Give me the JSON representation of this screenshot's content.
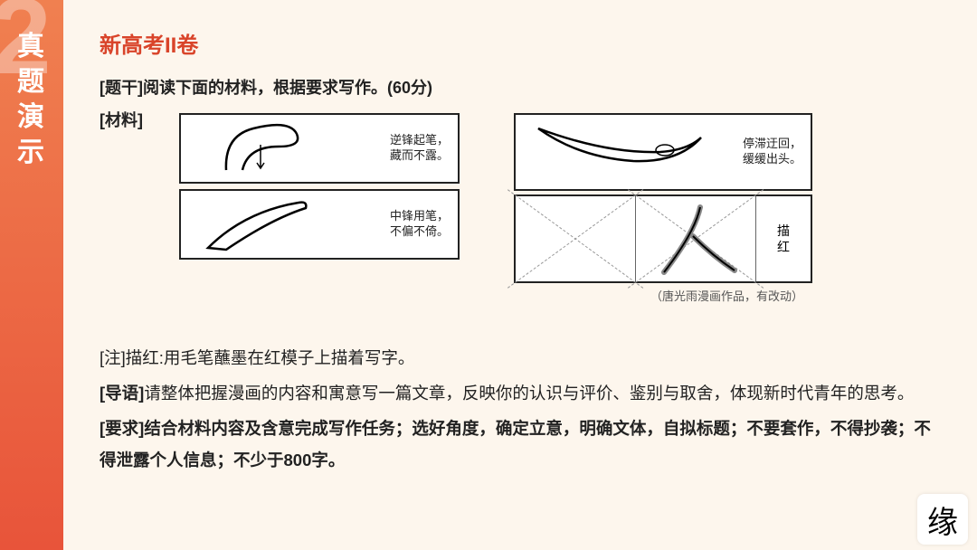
{
  "sidebar": {
    "big_number": "2",
    "title_chars": "真题演示"
  },
  "header": {
    "exam_title": "新高考II卷"
  },
  "question": {
    "stem_prefix": "[题干]",
    "stem_text": "阅读下面的材料，根据要求写作。(60分)",
    "material_label": "[材料]"
  },
  "captions": {
    "p1_line1": "逆锋起笔，",
    "p1_line2": "藏而不露。",
    "p2_line1": "中锋用笔，",
    "p2_line2": "不偏不倚。",
    "p3_line1": "停滞迂回，",
    "p3_line2": "缓缓出头。",
    "mh1": "描",
    "mh2": "红"
  },
  "credit": "（唐光雨漫画作品，有改动）",
  "body": {
    "note": "[注]描红:用毛笔蘸墨在红模子上描着写字。",
    "lead_label": "[导语]",
    "lead_text": "请整体把握漫画的内容和寓意写一篇文章，反映你的认识与评价、鉴别与取舍，体现新时代青年的思考。",
    "req_label": "[要求]",
    "req_text": "结合材料内容及含意完成写作任务；选好角度，确定立意，明确文体，自拟标题；不要套作，不得抄袭；不得泄露个人信息；不少于800字。"
  },
  "logo": "缘",
  "colors": {
    "accent": "#d9442a",
    "bg": "#fdf6ed",
    "sidebar_top": "#f08050",
    "sidebar_bot": "#e8543a"
  }
}
